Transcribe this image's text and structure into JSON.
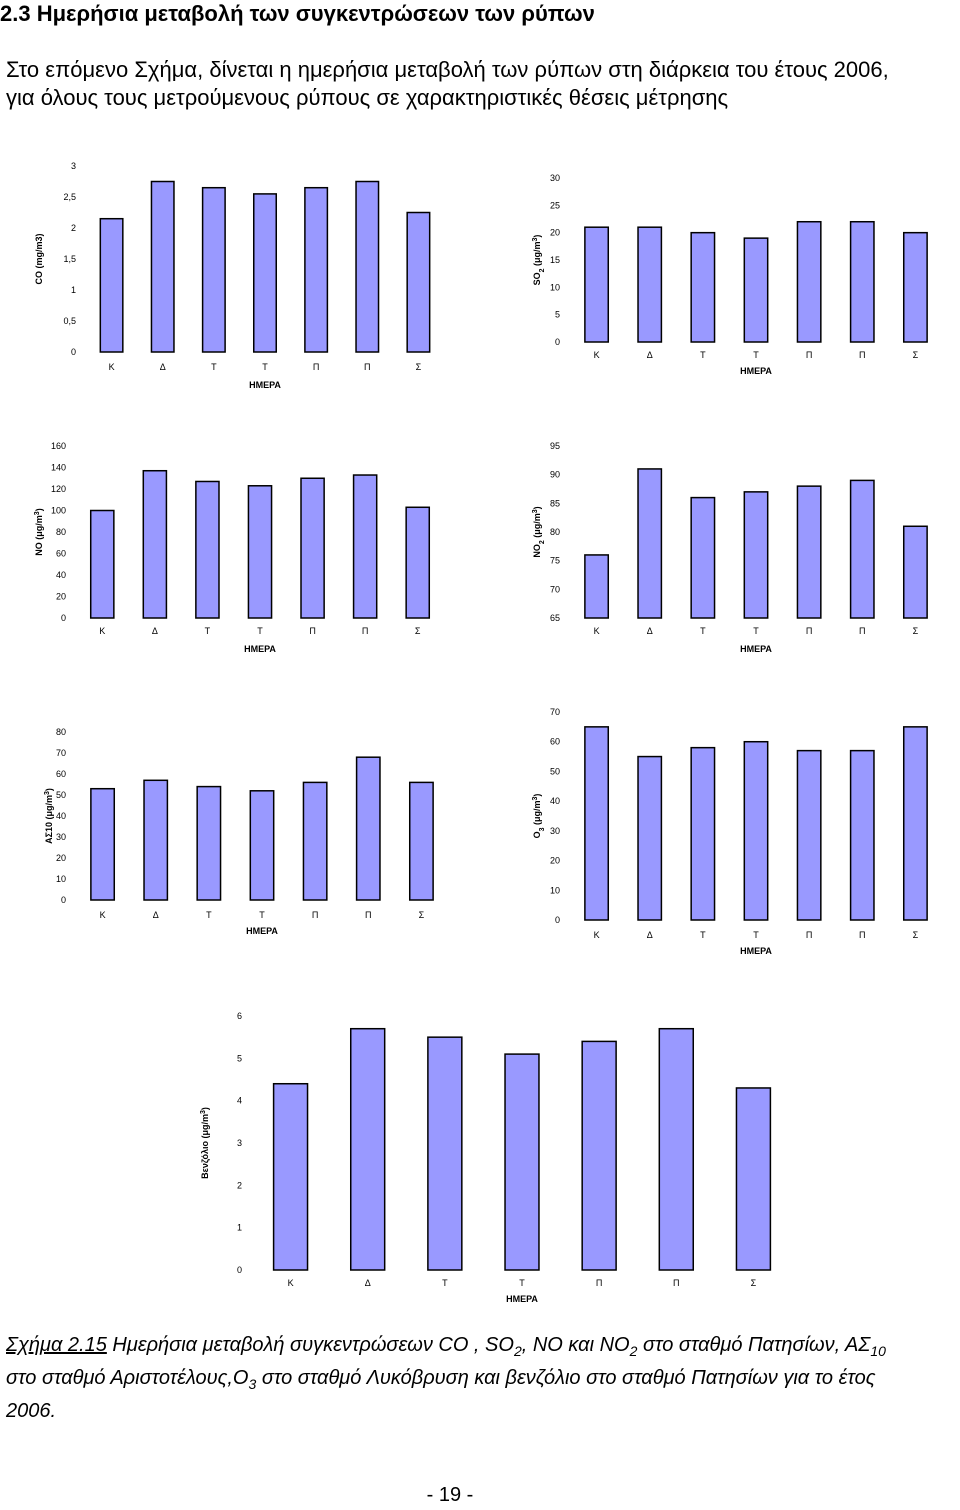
{
  "heading": "2.3 Ημερήσια μεταβολή των συγκεντρώσεων των ρύπων",
  "intro": "Στο επόμενο Σχήμα, δίνεται η ημερήσια μεταβολή των ρύπων στη διάρκεια του έτους 2006, για όλους τους μετρούμενους ρύπους σε χαρακτηριστικές θέσεις μέτρησης",
  "colors": {
    "bar_fill": "#9999FF",
    "bar_stroke": "#000000"
  },
  "chart_data": [
    {
      "id": "co",
      "type": "bar",
      "categories": [
        "Κ",
        "Δ",
        "Τ",
        "Τ",
        "Π",
        "Π",
        "Σ"
      ],
      "values": [
        2.15,
        2.75,
        2.65,
        2.55,
        2.65,
        2.75,
        2.25
      ],
      "xlabel": "ΗΜΕΡΑ",
      "ylabel": "CO (mg/m3)",
      "ylim": [
        0,
        3
      ],
      "ticks": [
        "0",
        "0,5",
        "1",
        "1,5",
        "2",
        "2,5",
        "3"
      ],
      "grid": false
    },
    {
      "id": "so2",
      "type": "bar",
      "categories": [
        "Κ",
        "Δ",
        "Τ",
        "Τ",
        "Π",
        "Π",
        "Σ"
      ],
      "values": [
        21,
        21,
        20,
        19,
        22,
        22,
        20
      ],
      "xlabel": "ΗΜΕΡΑ",
      "ylabel": "SO2 (μg/m3)",
      "ylim": [
        0,
        30
      ],
      "ticks": [
        "0",
        "5",
        "10",
        "15",
        "20",
        "25",
        "30"
      ],
      "grid": false
    },
    {
      "id": "no",
      "type": "bar",
      "categories": [
        "Κ",
        "Δ",
        "Τ",
        "Τ",
        "Π",
        "Π",
        "Σ"
      ],
      "values": [
        100,
        137,
        127,
        123,
        130,
        133,
        103
      ],
      "xlabel": "ΗΜΕΡΑ",
      "ylabel": "NO (μg/m3)",
      "ylim": [
        0,
        160
      ],
      "ticks": [
        "0",
        "20",
        "40",
        "60",
        "80",
        "100",
        "120",
        "140",
        "160"
      ],
      "grid": false
    },
    {
      "id": "no2",
      "type": "bar",
      "categories": [
        "Κ",
        "Δ",
        "Τ",
        "Τ",
        "Π",
        "Π",
        "Σ"
      ],
      "values": [
        76,
        91,
        86,
        87,
        88,
        89,
        81
      ],
      "xlabel": "ΗΜΕΡΑ",
      "ylabel": "NO2 (μg/m3)",
      "ylim": [
        65,
        95
      ],
      "ticks": [
        "65",
        "70",
        "75",
        "80",
        "85",
        "90",
        "95"
      ],
      "grid": false
    },
    {
      "id": "pm10",
      "type": "bar",
      "categories": [
        "Κ",
        "Δ",
        "Τ",
        "Τ",
        "Π",
        "Π",
        "Σ"
      ],
      "values": [
        53,
        57,
        54,
        52,
        56,
        68,
        56
      ],
      "xlabel": "ΗΜΕΡΑ",
      "ylabel": "ΑΣ10 (μg/m3)",
      "ylim": [
        0,
        80
      ],
      "ticks": [
        "0",
        "10",
        "20",
        "30",
        "40",
        "50",
        "60",
        "70",
        "80"
      ],
      "grid": false
    },
    {
      "id": "o3",
      "type": "bar",
      "categories": [
        "Κ",
        "Δ",
        "Τ",
        "Τ",
        "Π",
        "Π",
        "Σ"
      ],
      "values": [
        65,
        55,
        58,
        60,
        57,
        57,
        65
      ],
      "xlabel": "ΗΜΕΡΑ",
      "ylabel": "O3 (μg/m3)",
      "ylim": [
        0,
        70
      ],
      "ticks": [
        "0",
        "10",
        "20",
        "30",
        "40",
        "50",
        "60",
        "70"
      ],
      "grid": false
    },
    {
      "id": "benzene",
      "type": "bar",
      "categories": [
        "Κ",
        "Δ",
        "Τ",
        "Τ",
        "Π",
        "Π",
        "Σ"
      ],
      "values": [
        4.4,
        5.7,
        5.5,
        5.1,
        5.4,
        5.7,
        4.3
      ],
      "xlabel": "ΗΜΕΡΑ",
      "ylabel": "Βενζόλιο (μg/m3)",
      "ylim": [
        0,
        6
      ],
      "ticks": [
        "0",
        "1",
        "2",
        "3",
        "4",
        "5",
        "6"
      ],
      "grid": false
    }
  ],
  "caption": {
    "prefix": "Σχήμα 2.15",
    "t1": " Ημερήσια μεταβολή συγκεντρώσεων CO , SO",
    "s1": "2",
    "t2": ", NO και NO",
    "s2": "2",
    "t3": " στο σταθμό Πατησίων, ΑΣ",
    "s3": "10",
    "t4": " στο σταθμό Αριστοτέλους,O",
    "s4": "3",
    "t5": " στο σταθμό Λυκόβρυση και βενζόλιο στο σταθμό Πατησίων για το έτος 2006."
  },
  "page_number": "- 19 -"
}
